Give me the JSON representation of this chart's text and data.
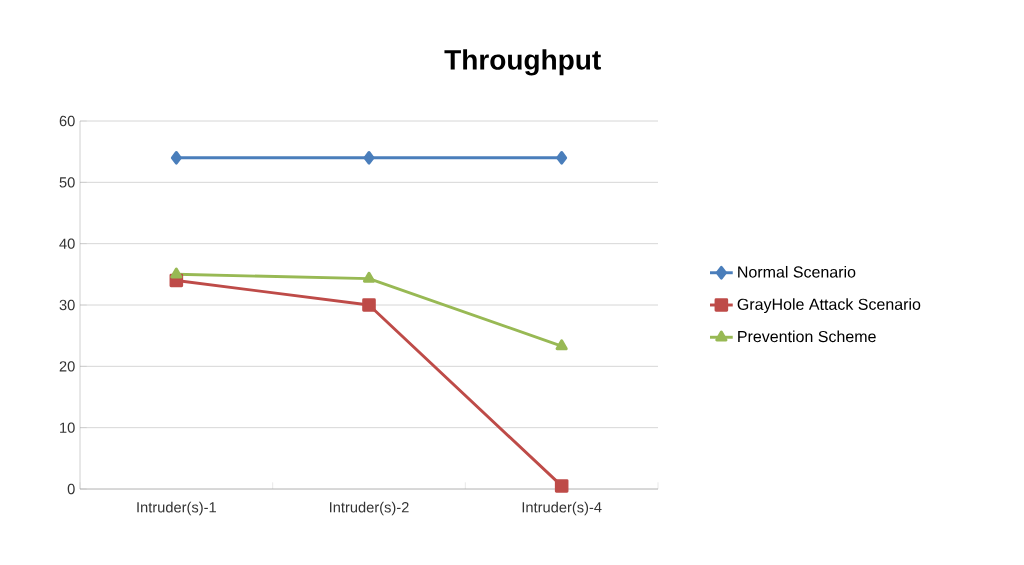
{
  "chart_data": {
    "type": "line",
    "title": "Throughput",
    "categories": [
      "Intruder(s)-1",
      "Intruder(s)-2",
      "Intruder(s)-4"
    ],
    "series": [
      {
        "name": "Normal Scenario",
        "color": "#4a7ebb",
        "marker": "diamond",
        "values": [
          54,
          54,
          54
        ]
      },
      {
        "name": "GrayHole Attack Scenario",
        "color": "#be4b48",
        "marker": "square",
        "values": [
          34,
          30,
          0.5
        ]
      },
      {
        "name": "Prevention Scheme",
        "color": "#98b954",
        "marker": "triangle",
        "values": [
          35,
          34.3,
          23.3
        ]
      }
    ],
    "ylim": [
      0,
      60
    ],
    "yticks": [
      0,
      10,
      20,
      30,
      40,
      50,
      60
    ],
    "grid": "y",
    "legend": "right",
    "line_style": "solid"
  }
}
